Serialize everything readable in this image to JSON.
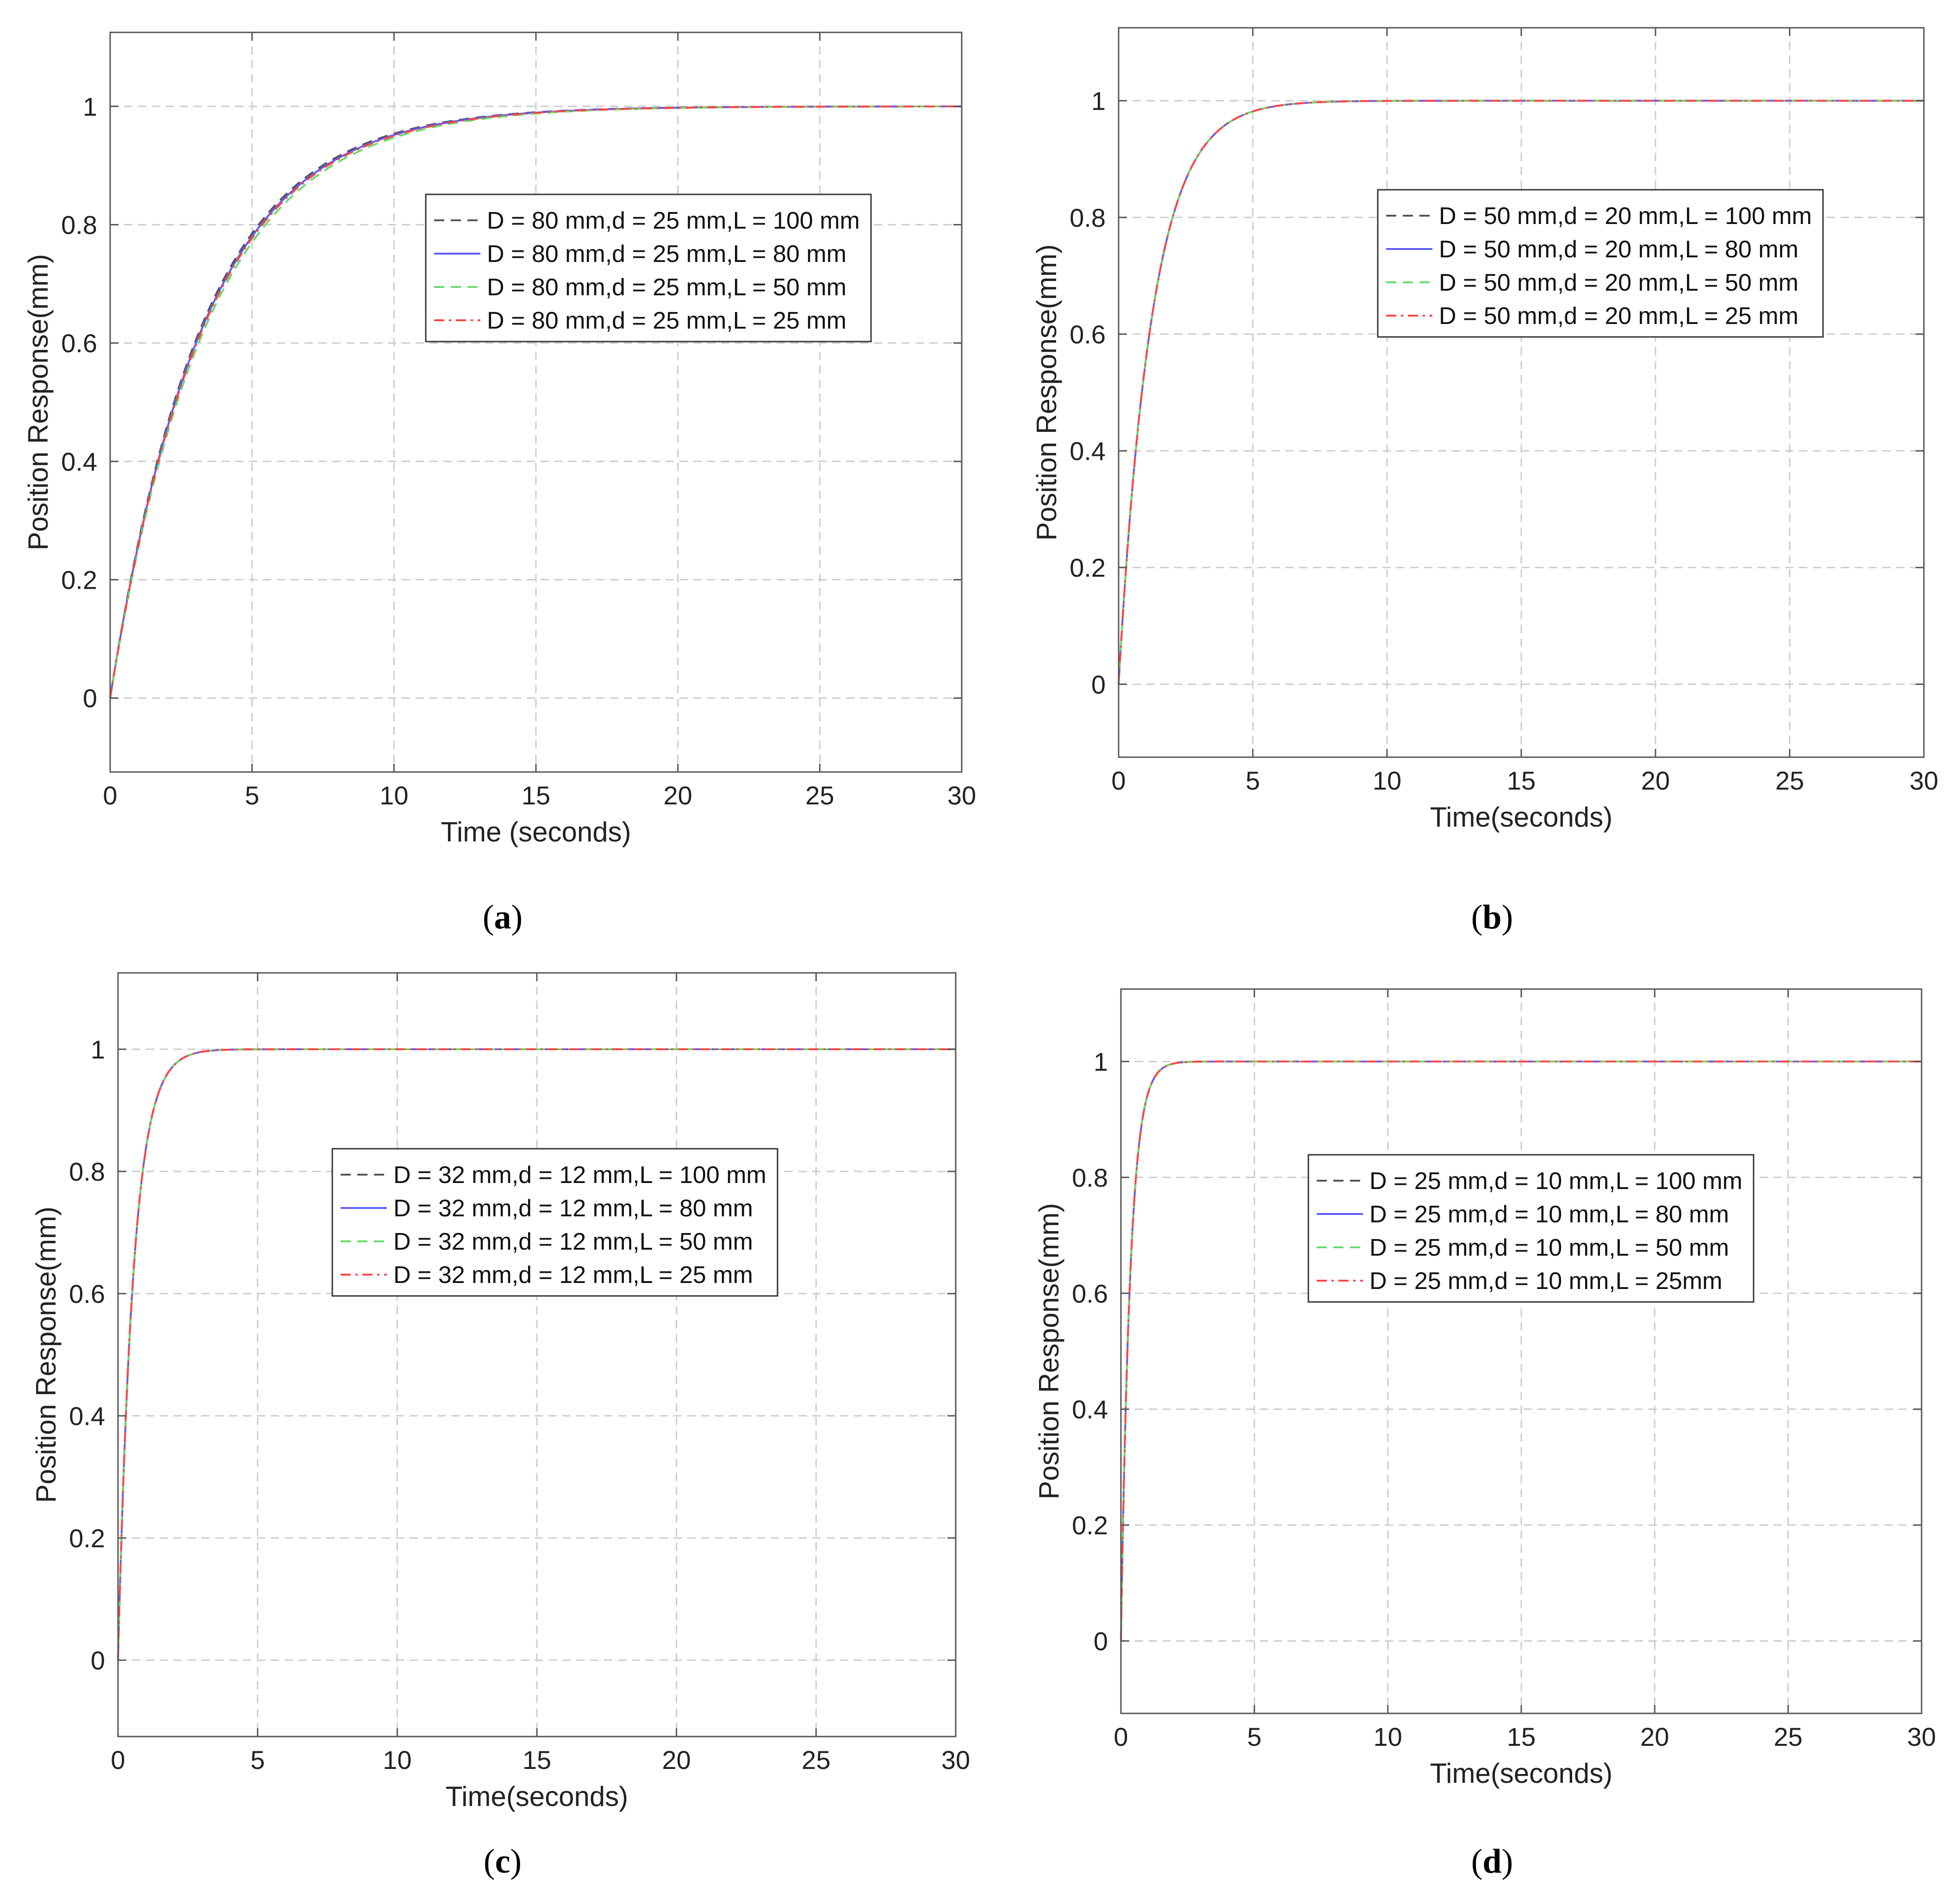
{
  "figure": {
    "background": "#ffffff",
    "grid_color": "#cccccc",
    "axes_color": "#555555"
  },
  "chart_data": [
    {
      "id": "a",
      "type": "line",
      "caption_label": "a",
      "xlabel": "Time (seconds)",
      "ylabel": "Position Response(mm)",
      "xlim": [
        0,
        30
      ],
      "ylim": [
        -0.125,
        1.125
      ],
      "xticks": [
        0,
        5,
        10,
        15,
        20,
        25,
        30
      ],
      "yticks": [
        0,
        0.2,
        0.4,
        0.6,
        0.8,
        1
      ],
      "grid": true,
      "legend_position": "center-right",
      "time_constant": 3.33,
      "series": [
        {
          "name": "D = 80 mm,d = 25 mm,L = 100 mm",
          "color": "#555555",
          "style": "dashed",
          "tau": 3.25
        },
        {
          "name": "D = 80 mm,d = 25 mm,L = 80 mm",
          "color": "#5a5aff",
          "style": "solid",
          "tau": 3.3
        },
        {
          "name": "D = 80 mm,d = 25 mm,L = 50 mm",
          "color": "#66dd66",
          "style": "dashed",
          "tau": 3.4
        },
        {
          "name": "D = 80 mm,d = 25 mm,L = 25 mm",
          "color": "#ff4444",
          "style": "dashdot",
          "tau": 3.33
        }
      ]
    },
    {
      "id": "b",
      "type": "line",
      "caption_label": "b",
      "xlabel": "Time(seconds)",
      "ylabel": "Position Response(mm)",
      "xlim": [
        0,
        30
      ],
      "ylim": [
        -0.125,
        1.125
      ],
      "xticks": [
        0,
        5,
        10,
        15,
        20,
        25,
        30
      ],
      "yticks": [
        0,
        0.2,
        0.4,
        0.6,
        0.8,
        1
      ],
      "grid": true,
      "legend_position": "top-center",
      "series": [
        {
          "name": "D = 50 mm,d = 20 mm,L = 100 mm",
          "color": "#555555",
          "style": "dashed",
          "tau": 1.25
        },
        {
          "name": "D = 50 mm,d = 20 mm,L = 80 mm",
          "color": "#5a5aff",
          "style": "solid",
          "tau": 1.25
        },
        {
          "name": "D = 50 mm,d = 20 mm,L = 50 mm",
          "color": "#66dd66",
          "style": "dashed",
          "tau": 1.25
        },
        {
          "name": "D = 50 mm,d = 20 mm,L = 25 mm",
          "color": "#ff4444",
          "style": "dashdot",
          "tau": 1.25
        }
      ]
    },
    {
      "id": "c",
      "type": "line",
      "caption_label": "c",
      "xlabel": "Time(seconds)",
      "ylabel": "Position Response(mm)",
      "xlim": [
        0,
        30
      ],
      "ylim": [
        -0.125,
        1.125
      ],
      "xticks": [
        0,
        5,
        10,
        15,
        20,
        25,
        30
      ],
      "yticks": [
        0,
        0.2,
        0.4,
        0.6,
        0.8,
        1
      ],
      "grid": true,
      "legend_position": "center",
      "series": [
        {
          "name": "D = 32 mm,d = 12 mm,L = 100 mm",
          "color": "#555555",
          "style": "dashed",
          "tau": 0.55
        },
        {
          "name": "D = 32 mm,d = 12 mm,L = 80 mm",
          "color": "#5a5aff",
          "style": "solid",
          "tau": 0.55
        },
        {
          "name": "D = 32 mm,d = 12 mm,L = 50 mm",
          "color": "#66dd66",
          "style": "dashed",
          "tau": 0.55
        },
        {
          "name": "D = 32 mm,d = 12 mm,L = 25 mm",
          "color": "#ff4444",
          "style": "dashdot",
          "tau": 0.55
        }
      ]
    },
    {
      "id": "d",
      "type": "line",
      "caption_label": "d",
      "xlabel": "Time(seconds)",
      "ylabel": "Position Response(mm)",
      "xlim": [
        0,
        30
      ],
      "ylim": [
        -0.125,
        1.125
      ],
      "xticks": [
        0,
        5,
        10,
        15,
        20,
        25,
        30
      ],
      "yticks": [
        0,
        0.2,
        0.4,
        0.6,
        0.8,
        1
      ],
      "grid": true,
      "legend_position": "center",
      "series": [
        {
          "name": "D = 25 mm,d = 10 mm,L = 100 mm",
          "color": "#555555",
          "style": "dashed",
          "tau": 0.35
        },
        {
          "name": "D = 25 mm,d = 10 mm,L = 80 mm",
          "color": "#5a5aff",
          "style": "solid",
          "tau": 0.35
        },
        {
          "name": "D = 25 mm,d = 10 mm,L = 50 mm",
          "color": "#66dd66",
          "style": "dashed",
          "tau": 0.35
        },
        {
          "name": "D = 25 mm,d = 10 mm,L = 25mm",
          "color": "#ff4444",
          "style": "dashdot",
          "tau": 0.35
        }
      ]
    }
  ]
}
